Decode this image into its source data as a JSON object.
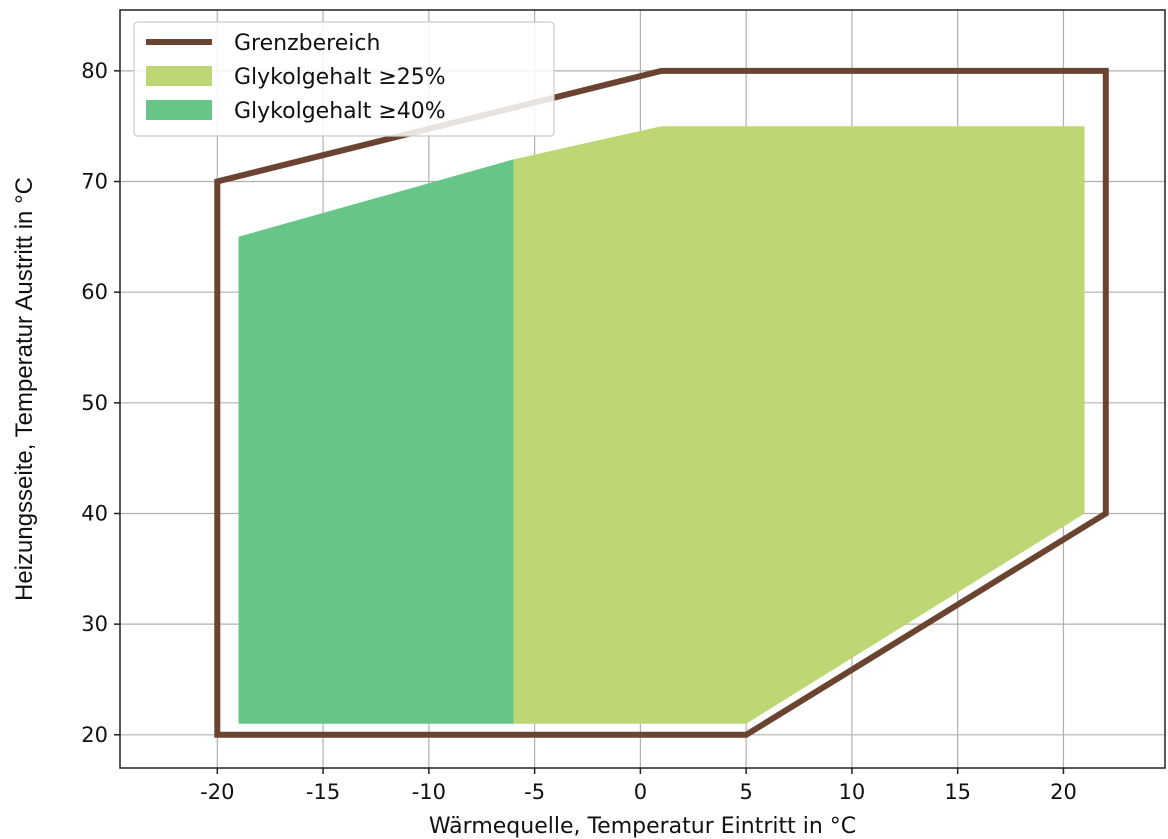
{
  "chart_data": {
    "type": "area",
    "title": "",
    "xlabel": "Wärmequelle, Temperatur Eintritt in °C",
    "ylabel": "Heizungsseite, Temperatur Austritt in °C",
    "xlim": [
      -24.6,
      24.8
    ],
    "ylim": [
      17,
      85.5
    ],
    "xticks": [
      -20,
      -15,
      -10,
      -5,
      0,
      5,
      10,
      15,
      20
    ],
    "yticks": [
      20,
      30,
      40,
      50,
      60,
      70,
      80
    ],
    "grid": true,
    "legend_position": "top-left",
    "series": [
      {
        "name": "Grenzbereich",
        "kind": "line",
        "color": "#6b4431",
        "points": [
          [
            -20,
            20
          ],
          [
            -20,
            70
          ],
          [
            1,
            80
          ],
          [
            22,
            80
          ],
          [
            22,
            40
          ],
          [
            5,
            20
          ],
          [
            -20,
            20
          ]
        ]
      },
      {
        "name": "Glykolgehalt ≥25%",
        "kind": "fill",
        "color": "#bdd774",
        "points": [
          [
            -6,
            21
          ],
          [
            -6,
            72
          ],
          [
            1,
            75
          ],
          [
            21,
            75
          ],
          [
            21,
            40
          ],
          [
            5,
            21
          ]
        ]
      },
      {
        "name": "Glykolgehalt ≥40%",
        "kind": "fill",
        "color": "#66c587",
        "points": [
          [
            -19,
            21
          ],
          [
            -19,
            65
          ],
          [
            -6,
            72
          ],
          [
            -6,
            21
          ]
        ]
      }
    ]
  }
}
